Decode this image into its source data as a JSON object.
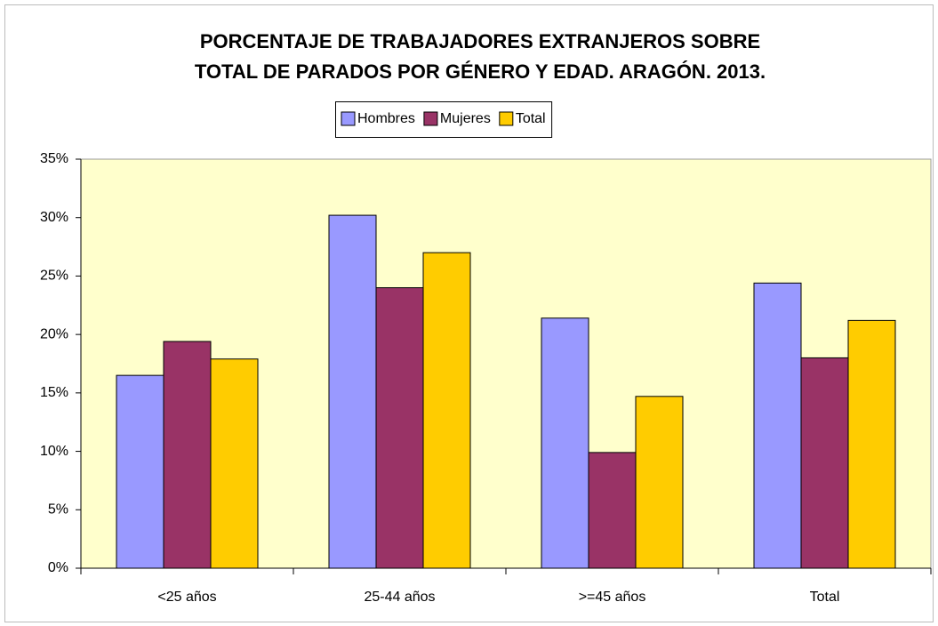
{
  "chart_data": {
    "type": "bar",
    "title": [
      "PORCENTAJE DE TRABAJADORES EXTRANJEROS SOBRE",
      "TOTAL DE PARADOS POR GÉNERO Y EDAD. ARAGÓN. 2013."
    ],
    "categories": [
      "<25 años",
      "25-44 años",
      ">=45 años",
      "Total"
    ],
    "series": [
      {
        "name": "Hombres",
        "color": "#9999ff",
        "values": [
          16.5,
          30.2,
          21.4,
          24.4
        ]
      },
      {
        "name": "Mujeres",
        "color": "#993366",
        "values": [
          19.4,
          24.0,
          9.9,
          18.0
        ]
      },
      {
        "name": "Total",
        "color": "#ffcc00",
        "values": [
          17.9,
          27.0,
          14.7,
          21.2
        ]
      }
    ],
    "ylim": [
      0,
      35
    ],
    "yticks": [
      {
        "value": 0,
        "label": "0%"
      },
      {
        "value": 5,
        "label": "5%"
      },
      {
        "value": 10,
        "label": "10%"
      },
      {
        "value": 15,
        "label": "15%"
      },
      {
        "value": 20,
        "label": "20%"
      },
      {
        "value": 25,
        "label": "25%"
      },
      {
        "value": 30,
        "label": "30%"
      },
      {
        "value": 35,
        "label": "35%"
      }
    ],
    "legend": "top",
    "plot_background": "#ffffcc"
  }
}
